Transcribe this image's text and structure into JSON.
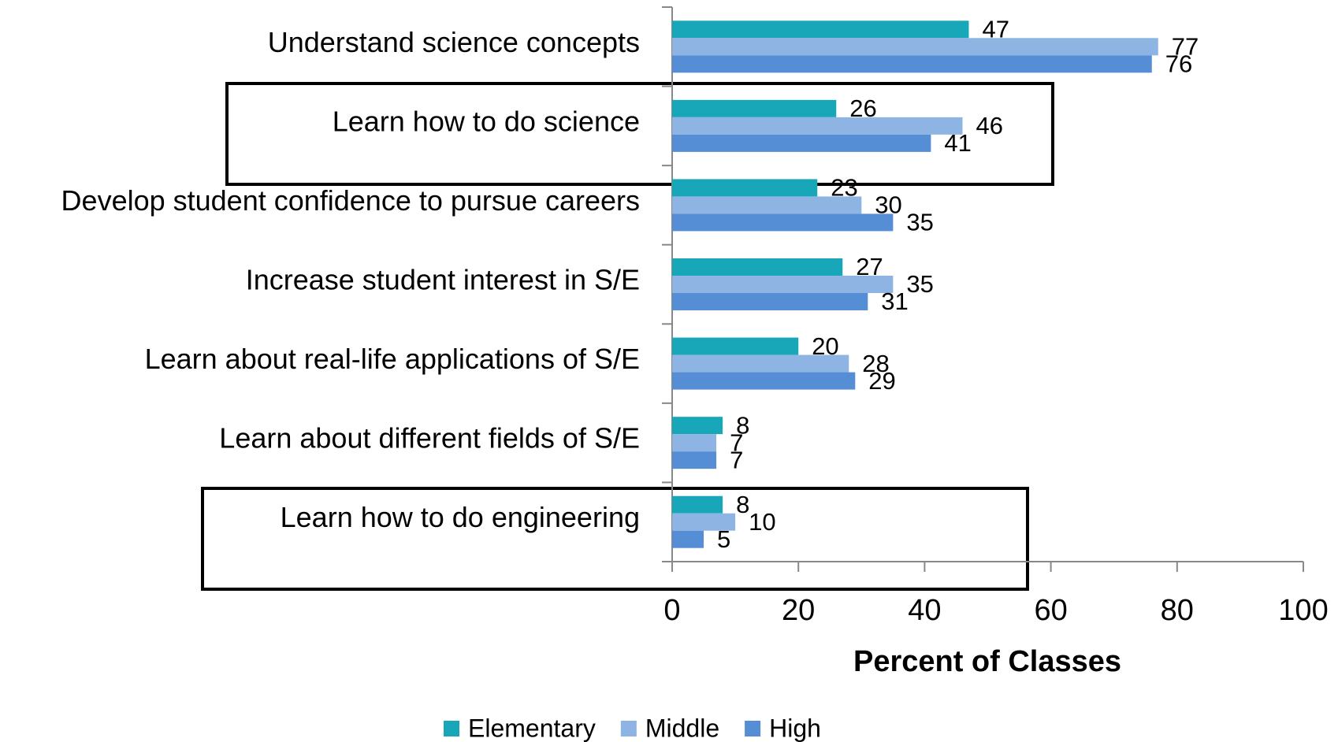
{
  "chart_data": {
    "type": "bar",
    "orientation": "horizontal",
    "xlabel": "Percent of Classes",
    "categories": [
      "Understand science concepts",
      "Learn how to do science",
      "Develop student confidence to pursue careers",
      "Increase student interest in S/E",
      "Learn about real-life applications of S/E",
      "Learn about different fields of S/E",
      "Learn how to do engineering"
    ],
    "series": [
      {
        "name": "Elementary",
        "color": "#17a7b8",
        "values": [
          47,
          26,
          23,
          27,
          20,
          8,
          8
        ]
      },
      {
        "name": "Middle",
        "color": "#8db4e2",
        "values": [
          77,
          46,
          30,
          35,
          28,
          7,
          10
        ]
      },
      {
        "name": "High",
        "color": "#558ed5",
        "values": [
          76,
          41,
          35,
          31,
          29,
          7,
          5
        ]
      }
    ],
    "xlim": [
      0,
      100
    ],
    "xticks": [
      0,
      20,
      40,
      60,
      80,
      100
    ],
    "legend": "bottom"
  }
}
